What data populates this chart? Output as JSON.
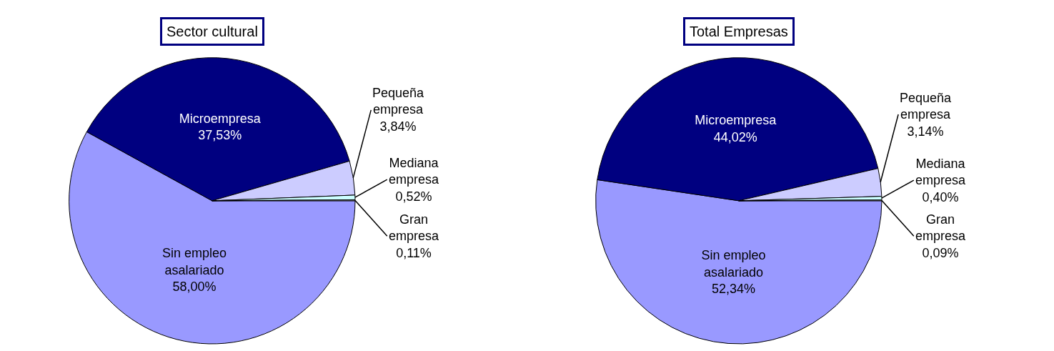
{
  "chart_data": [
    {
      "type": "pie",
      "title": "Sector cultural",
      "categories": [
        "Sin empleo asalariado",
        "Microempresa",
        "Pequeña empresa",
        "Mediana empresa",
        "Gran empresa"
      ],
      "values": [
        58.0,
        37.53,
        3.84,
        0.52,
        0.11
      ],
      "value_labels": [
        "58,00%",
        "37,53%",
        "3,84%",
        "0,52%",
        "0,11%"
      ],
      "colors": [
        "#9999ff",
        "#000080",
        "#ccccff",
        "#ccffff",
        "#ffffff"
      ],
      "legend": false
    },
    {
      "type": "pie",
      "title": "Total Empresas",
      "categories": [
        "Sin empleo asalariado",
        "Microempresa",
        "Pequeña empresa",
        "Mediana empresa",
        "Gran empresa"
      ],
      "values": [
        52.34,
        44.02,
        3.14,
        0.4,
        0.09
      ],
      "value_labels": [
        "52,34%",
        "44,02%",
        "3,14%",
        "0,40%",
        "0,09%"
      ],
      "colors": [
        "#9999ff",
        "#000080",
        "#ccccff",
        "#ccffff",
        "#ffffff"
      ],
      "legend": false
    }
  ]
}
